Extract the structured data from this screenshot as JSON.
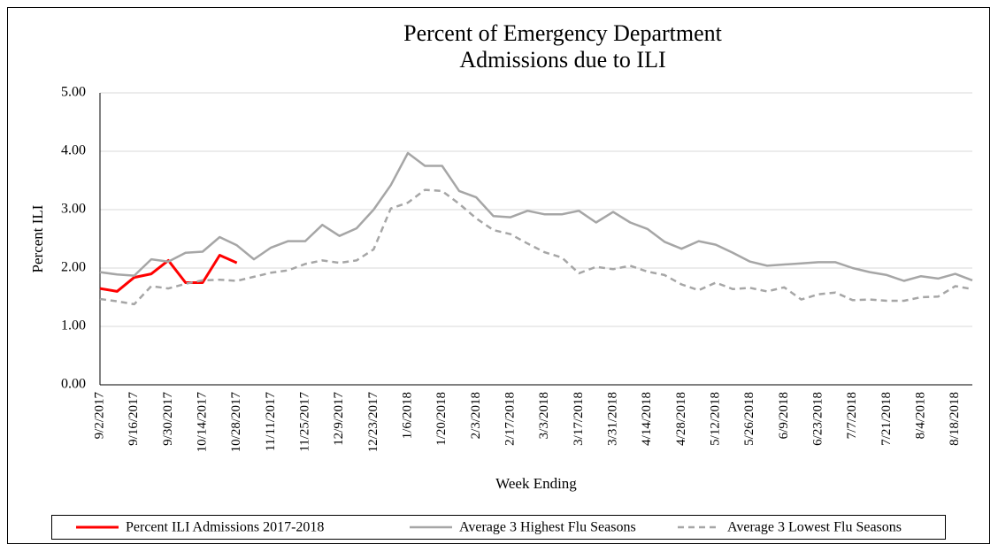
{
  "chart_data": {
    "type": "line",
    "title": [
      "Percent of Emergency Department",
      "Admissions due to ILI"
    ],
    "x_label": "Week Ending",
    "y_label": "Percent ILI",
    "categories": [
      "9/2/2017",
      null,
      "9/16/2017",
      null,
      "9/30/2017",
      null,
      "10/14/2017",
      null,
      "10/28/2017",
      null,
      "11/11/2017",
      null,
      "11/25/2017",
      null,
      "12/9/2017",
      null,
      "12/23/2017",
      null,
      "1/6/2018",
      null,
      "1/20/2018",
      null,
      "2/3/2018",
      null,
      "2/17/2018",
      null,
      "3/3/2018",
      null,
      "3/17/2018",
      null,
      "3/31/2018",
      null,
      "4/14/2018",
      null,
      "4/28/2018",
      null,
      "5/12/2018",
      null,
      "5/26/2018",
      null,
      "6/9/2018",
      null,
      "6/23/2018",
      null,
      "7/7/2018",
      null,
      "7/21/2018",
      null,
      "8/4/2018",
      null,
      "8/18/2018",
      null
    ],
    "series": [
      {
        "name": "Percent ILI Admissions 2017-2018",
        "color": "#ff0000",
        "dashed": false,
        "values": [
          1.65,
          1.6,
          1.84,
          1.9,
          2.13,
          1.75,
          1.75,
          2.22,
          2.09,
          null,
          null,
          null,
          null,
          null,
          null,
          null,
          null,
          null,
          null,
          null,
          null,
          null,
          null,
          null,
          null,
          null,
          null,
          null,
          null,
          null,
          null,
          null,
          null,
          null,
          null,
          null,
          null,
          null,
          null,
          null,
          null,
          null,
          null,
          null,
          null,
          null,
          null,
          null,
          null,
          null,
          null,
          null
        ]
      },
      {
        "name": "Average 3 Highest Flu Seasons",
        "color": "#a6a6a6",
        "dashed": false,
        "values": [
          1.93,
          1.89,
          1.87,
          2.15,
          2.11,
          2.26,
          2.28,
          2.53,
          2.39,
          2.15,
          2.35,
          2.46,
          2.46,
          2.74,
          2.55,
          2.68,
          3.0,
          3.42,
          3.97,
          3.75,
          3.75,
          3.32,
          3.21,
          2.89,
          2.87,
          2.98,
          2.92,
          2.92,
          2.98,
          2.78,
          2.96,
          2.78,
          2.67,
          2.45,
          2.33,
          2.46,
          2.4,
          2.26,
          2.11,
          2.04,
          2.06,
          2.08,
          2.1,
          2.1,
          2.0,
          1.93,
          1.88,
          1.78,
          1.86,
          1.82,
          1.9,
          1.79
        ]
      },
      {
        "name": "Average 3 Lowest Flu Seasons",
        "color": "#a6a6a6",
        "dashed": true,
        "values": [
          1.47,
          1.43,
          1.38,
          1.69,
          1.65,
          1.73,
          1.79,
          1.8,
          1.78,
          1.85,
          1.92,
          1.96,
          2.07,
          2.13,
          2.09,
          2.13,
          2.32,
          3.02,
          3.12,
          3.34,
          3.32,
          3.1,
          2.85,
          2.65,
          2.58,
          2.42,
          2.27,
          2.18,
          1.91,
          2.02,
          1.98,
          2.04,
          1.94,
          1.88,
          1.72,
          1.62,
          1.75,
          1.64,
          1.66,
          1.6,
          1.67,
          1.46,
          1.55,
          1.58,
          1.45,
          1.46,
          1.44,
          1.44,
          1.5,
          1.51,
          1.69,
          1.64
        ]
      }
    ],
    "ylim": [
      0,
      5
    ],
    "yticks": [
      {
        "value": 0,
        "label": "0.00"
      },
      {
        "value": 1,
        "label": "1.00"
      },
      {
        "value": 2,
        "label": "2.00"
      },
      {
        "value": 3,
        "label": "3.00"
      },
      {
        "value": 4,
        "label": "4.00"
      },
      {
        "value": 5,
        "label": "5.00"
      }
    ],
    "grid": true,
    "legend": "bottom"
  }
}
